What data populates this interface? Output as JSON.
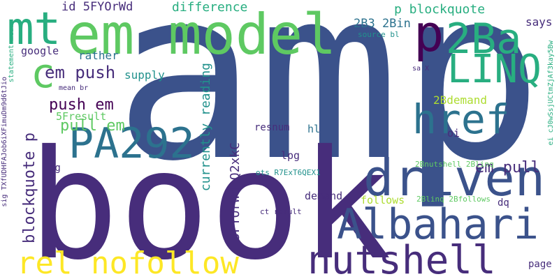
{
  "palette": {
    "dark_purple": "#440154",
    "indigo": "#472d7b",
    "blue": "#3b528b",
    "steel": "#2c728e",
    "teal": "#21918c",
    "green_teal": "#28ae80",
    "green": "#5ec962",
    "lime": "#addc30",
    "yellow": "#fde725"
  },
  "words": [
    "amp",
    "book",
    "em model",
    "mt",
    "p",
    "2Ba",
    "LINQ",
    "driven",
    "href",
    "PA292",
    "Albahari",
    "nutshell",
    "rel nofollow",
    "c",
    "em push",
    "push em",
    "pull em",
    "em pull",
    "blockquote p",
    "currently reading",
    "5FYOrWd Q2xkC",
    "difference",
    "id 5FYOrWd",
    "p blockquote",
    "2B3 2Bin",
    "source bl",
    "says",
    "google",
    "rather",
    "supply",
    "2Bdemand",
    "5Fresult",
    "resnum",
    "lpg",
    "hl",
    "pg",
    "oi",
    "demand",
    "follows",
    "dq",
    "2Bnutshell 2Blinq",
    "2Blinq 2Bfollows",
    "ots R7ExT6QEX1",
    "ct result",
    "page",
    "sa X",
    "mean br",
    "statement mean",
    "sig TXfUDHFAJob6iXFimuDm9d6tJio",
    "ei cJ0wSsjUCtmZjAf3kay5Bw"
  ]
}
